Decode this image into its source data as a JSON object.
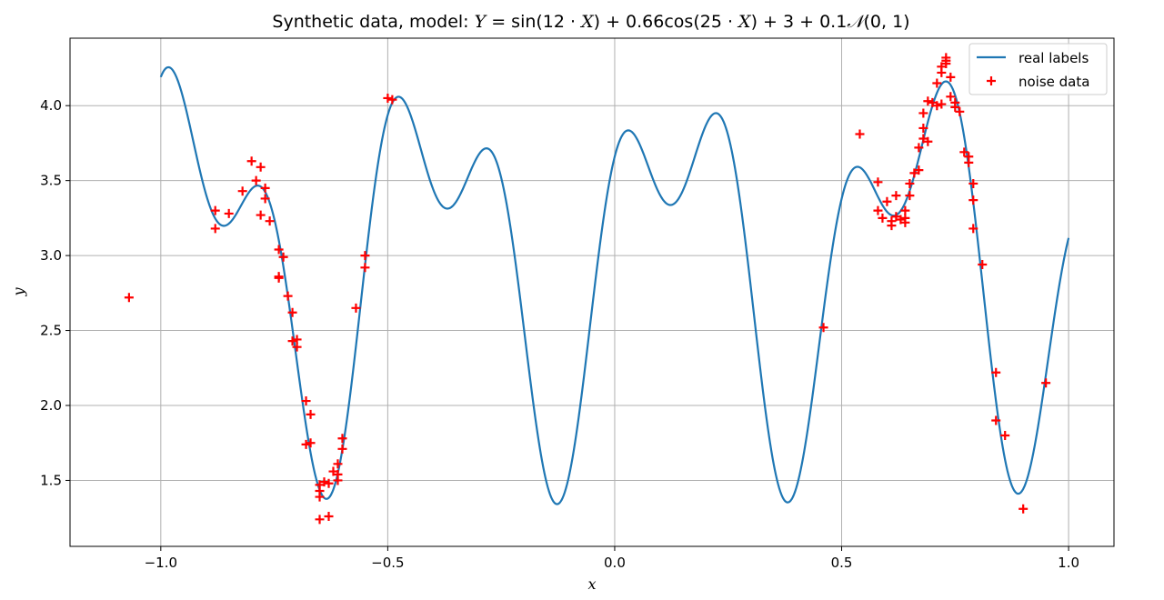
{
  "chart_data": {
    "type": "line",
    "title": {
      "prefix": "Synthetic data, model: ",
      "formula_parts": [
        "Y",
        " = sin(12 · ",
        "X",
        ") + 0.66cos(25 · ",
        "X",
        ") + 3 + 0.1",
        "𝒩",
        "(0, 1)"
      ]
    },
    "xlabel": "x",
    "ylabel": "y",
    "xlim": [
      -1.2,
      1.1
    ],
    "ylim": [
      1.06,
      4.45
    ],
    "xticks": [
      -1.0,
      -0.5,
      0.0,
      0.5,
      1.0
    ],
    "xtick_labels": [
      "−1.0",
      "−0.5",
      "0.0",
      "0.5",
      "1.0"
    ],
    "yticks": [
      1.5,
      2.0,
      2.5,
      3.0,
      3.5,
      4.0
    ],
    "ytick_labels": [
      "1.5",
      "2.0",
      "2.5",
      "3.0",
      "3.5",
      "4.0"
    ],
    "grid": true,
    "legend_position": "top-right",
    "series": [
      {
        "name": "real labels",
        "kind": "line",
        "color": "#1f77b4",
        "function": "sin(12x) + 0.66cos(25x) + 3",
        "x_range": [
          -1.0,
          1.0
        ]
      },
      {
        "name": "noise data",
        "kind": "scatter",
        "marker": "plus",
        "color": "#ff0000",
        "points": [
          [
            -1.07,
            2.72
          ],
          [
            -0.88,
            3.3
          ],
          [
            -0.88,
            3.18
          ],
          [
            -0.85,
            3.28
          ],
          [
            -0.82,
            3.43
          ],
          [
            -0.8,
            3.63
          ],
          [
            -0.79,
            3.5
          ],
          [
            -0.78,
            3.59
          ],
          [
            -0.78,
            3.27
          ],
          [
            -0.77,
            3.45
          ],
          [
            -0.77,
            3.38
          ],
          [
            -0.76,
            3.23
          ],
          [
            -0.74,
            3.04
          ],
          [
            -0.74,
            2.86
          ],
          [
            -0.74,
            2.85
          ],
          [
            -0.73,
            2.99
          ],
          [
            -0.72,
            2.73
          ],
          [
            -0.71,
            2.62
          ],
          [
            -0.71,
            2.43
          ],
          [
            -0.7,
            2.44
          ],
          [
            -0.7,
            2.39
          ],
          [
            -0.68,
            2.03
          ],
          [
            -0.67,
            1.94
          ],
          [
            -0.68,
            1.74
          ],
          [
            -0.67,
            1.75
          ],
          [
            -0.65,
            1.47
          ],
          [
            -0.65,
            1.43
          ],
          [
            -0.65,
            1.39
          ],
          [
            -0.65,
            1.24
          ],
          [
            -0.64,
            1.49
          ],
          [
            -0.63,
            1.48
          ],
          [
            -0.63,
            1.26
          ],
          [
            -0.62,
            1.56
          ],
          [
            -0.61,
            1.61
          ],
          [
            -0.61,
            1.54
          ],
          [
            -0.61,
            1.5
          ],
          [
            -0.6,
            1.71
          ],
          [
            -0.6,
            1.78
          ],
          [
            -0.57,
            2.65
          ],
          [
            -0.55,
            2.92
          ],
          [
            -0.55,
            3.0
          ],
          [
            -0.5,
            4.05
          ],
          [
            -0.49,
            4.04
          ],
          [
            0.46,
            2.52
          ],
          [
            0.54,
            3.81
          ],
          [
            0.58,
            3.49
          ],
          [
            0.58,
            3.3
          ],
          [
            0.59,
            3.25
          ],
          [
            0.6,
            3.36
          ],
          [
            0.61,
            3.23
          ],
          [
            0.61,
            3.2
          ],
          [
            0.62,
            3.4
          ],
          [
            0.62,
            3.26
          ],
          [
            0.63,
            3.24
          ],
          [
            0.64,
            3.25
          ],
          [
            0.64,
            3.22
          ],
          [
            0.64,
            3.3
          ],
          [
            0.65,
            3.4
          ],
          [
            0.65,
            3.48
          ],
          [
            0.66,
            3.55
          ],
          [
            0.67,
            3.57
          ],
          [
            0.67,
            3.72
          ],
          [
            0.68,
            3.78
          ],
          [
            0.68,
            3.85
          ],
          [
            0.68,
            3.95
          ],
          [
            0.69,
            3.76
          ],
          [
            0.69,
            4.03
          ],
          [
            0.7,
            4.02
          ],
          [
            0.71,
            4.15
          ],
          [
            0.71,
            4.0
          ],
          [
            0.72,
            4.22
          ],
          [
            0.72,
            4.26
          ],
          [
            0.72,
            4.01
          ],
          [
            0.73,
            4.3
          ],
          [
            0.73,
            4.28
          ],
          [
            0.73,
            4.32
          ],
          [
            0.74,
            4.19
          ],
          [
            0.74,
            4.06
          ],
          [
            0.75,
            4.02
          ],
          [
            0.75,
            3.99
          ],
          [
            0.76,
            3.96
          ],
          [
            0.77,
            3.69
          ],
          [
            0.78,
            3.66
          ],
          [
            0.78,
            3.62
          ],
          [
            0.79,
            3.48
          ],
          [
            0.79,
            3.37
          ],
          [
            0.79,
            3.18
          ],
          [
            0.81,
            2.94
          ],
          [
            0.84,
            2.22
          ],
          [
            0.84,
            1.9
          ],
          [
            0.86,
            1.8
          ],
          [
            0.9,
            1.31
          ],
          [
            0.95,
            2.15
          ]
        ]
      }
    ]
  }
}
